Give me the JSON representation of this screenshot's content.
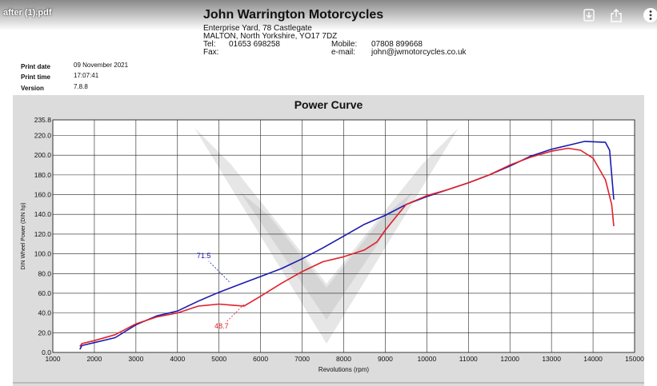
{
  "viewer": {
    "document_name": "after (1).pdf",
    "download_icon": "download-icon",
    "share_icon": "share-icon",
    "more_icon": "more-icon"
  },
  "company": {
    "name": "John Warrington Motorcycles",
    "address_line1": "Enterprise Yard, 78 Castlegate",
    "address_line2": "MALTON, North Yorkshire, YO17 7DZ",
    "tel_label": "Tel:",
    "tel": "01653 698258",
    "fax_label": "Fax:",
    "mobile_label": "Mobile:",
    "mobile": "07808 899668",
    "email_label": "e-mail:",
    "email": "john@jwmotorcycles.co.uk"
  },
  "print_info": {
    "date_label": "Print date",
    "date": "09 November 2021",
    "time_label": "Print time",
    "time": "17:07:41",
    "version_label": "Version",
    "version": "7.8.8"
  },
  "chart_data": {
    "type": "line",
    "title": "Power Curve",
    "xlabel": "Revolutions (rpm)",
    "ylabel": "DIN Wheel Power (DIN hp)",
    "xlim": [
      1000,
      15000
    ],
    "ylim": [
      0,
      235.8
    ],
    "x_ticks": [
      "1000",
      "2000",
      "3000",
      "4000",
      "5000",
      "6000",
      "7000",
      "8000",
      "9000",
      "10000",
      "11000",
      "12000",
      "13000",
      "14000",
      "15000"
    ],
    "y_ticks": [
      "0.0",
      "20.0",
      "40.0",
      "60.0",
      "80.0",
      "100.0",
      "120.0",
      "140.0",
      "160.0",
      "180.0",
      "200.0",
      "220.0",
      "235.8"
    ],
    "grid": true,
    "colors": {
      "blue": "#1a1ab0",
      "red": "#e0202a",
      "panel": "#dcdcdc"
    },
    "series": [
      {
        "color": "#1a1ab0",
        "points": [
          [
            1650,
            3
          ],
          [
            1700,
            7
          ],
          [
            2000,
            10
          ],
          [
            2500,
            15
          ],
          [
            3000,
            28
          ],
          [
            3500,
            37
          ],
          [
            4000,
            42
          ],
          [
            4500,
            52
          ],
          [
            5000,
            61
          ],
          [
            5500,
            69
          ],
          [
            6000,
            77
          ],
          [
            6500,
            85
          ],
          [
            7000,
            95
          ],
          [
            7500,
            106
          ],
          [
            8000,
            118
          ],
          [
            8500,
            130
          ],
          [
            9000,
            139
          ],
          [
            9500,
            150
          ],
          [
            10000,
            158
          ],
          [
            10500,
            165
          ],
          [
            11000,
            172
          ],
          [
            11500,
            180
          ],
          [
            12000,
            189
          ],
          [
            12500,
            199
          ],
          [
            13000,
            206
          ],
          [
            13500,
            211
          ],
          [
            13800,
            214
          ],
          [
            14300,
            213
          ],
          [
            14400,
            205
          ],
          [
            14500,
            155
          ]
        ]
      },
      {
        "color": "#e0202a",
        "points": [
          [
            1650,
            6
          ],
          [
            1700,
            9
          ],
          [
            2000,
            12
          ],
          [
            2500,
            18
          ],
          [
            3000,
            29
          ],
          [
            3500,
            36
          ],
          [
            4000,
            40
          ],
          [
            4500,
            47
          ],
          [
            5000,
            49
          ],
          [
            5300,
            48
          ],
          [
            5600,
            47
          ],
          [
            6000,
            57
          ],
          [
            6500,
            70
          ],
          [
            7000,
            82
          ],
          [
            7500,
            92
          ],
          [
            8000,
            97
          ],
          [
            8500,
            104
          ],
          [
            8800,
            112
          ],
          [
            9000,
            124
          ],
          [
            9500,
            150
          ],
          [
            10000,
            159
          ],
          [
            10500,
            165
          ],
          [
            11000,
            172
          ],
          [
            11500,
            180
          ],
          [
            12000,
            190
          ],
          [
            12500,
            198
          ],
          [
            13000,
            204
          ],
          [
            13400,
            207
          ],
          [
            13700,
            205
          ],
          [
            14000,
            197
          ],
          [
            14300,
            175
          ],
          [
            14450,
            150
          ],
          [
            14500,
            128
          ]
        ]
      }
    ],
    "annotations": [
      {
        "text": "71.5",
        "color": "#1a1ab0",
        "x": 5250,
        "y": 71.5
      },
      {
        "text": "48.7",
        "color": "#e0202a",
        "x": 5600,
        "y": 48.7
      }
    ]
  }
}
